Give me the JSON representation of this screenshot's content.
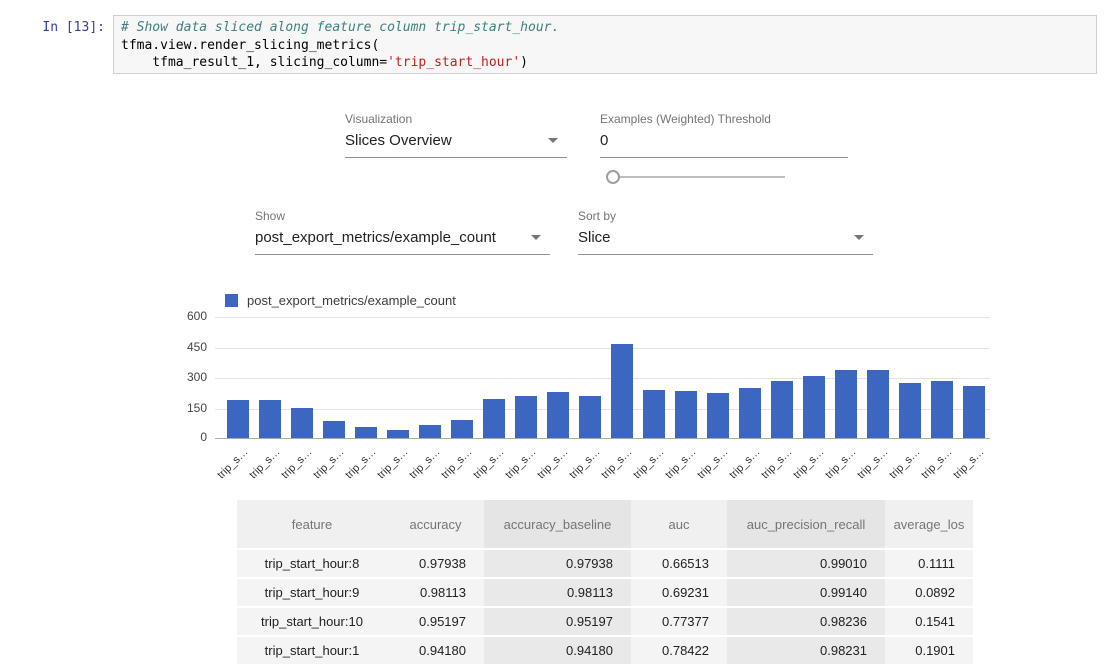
{
  "code": {
    "prompt": "In [13]:",
    "lines": [
      {
        "segments": [
          {
            "t": "# Show data sliced along feature column trip_start_hour.",
            "c": "comment"
          }
        ]
      },
      {
        "segments": [
          {
            "t": "tfma.view.render_slicing_metrics(",
            "c": "plain"
          }
        ]
      },
      {
        "segments": [
          {
            "t": "    tfma_result_1, slicing_column=",
            "c": "plain"
          },
          {
            "t": "'trip_start_hour'",
            "c": "string"
          },
          {
            "t": ")",
            "c": "plain"
          }
        ]
      }
    ]
  },
  "widget": {
    "visualization": {
      "label": "Visualization",
      "value": "Slices Overview"
    },
    "threshold": {
      "label": "Examples (Weighted) Threshold",
      "value": "0"
    },
    "show": {
      "label": "Show",
      "value": "post_export_metrics/example_count"
    },
    "sort_by": {
      "label": "Sort by",
      "value": "Slice"
    }
  },
  "chart_data": {
    "type": "bar",
    "legend": "post_export_metrics/example_count",
    "bar_color": "#3b66c2",
    "ylim": [
      0,
      600
    ],
    "yticks": [
      0,
      150,
      300,
      450,
      600
    ],
    "grid": true,
    "legend_position": "top-left",
    "categories": [
      "trip_s…",
      "trip_s…",
      "trip_s…",
      "trip_s…",
      "trip_s…",
      "trip_s…",
      "trip_s…",
      "trip_s…",
      "trip_s…",
      "trip_s…",
      "trip_s…",
      "trip_s…",
      "trip_s…",
      "trip_s…",
      "trip_s…",
      "trip_s…",
      "trip_s…",
      "trip_s…",
      "trip_s…",
      "trip_s…",
      "trip_s…",
      "trip_s…",
      "trip_s…",
      "trip_s…"
    ],
    "values": [
      187,
      187,
      148,
      84,
      54,
      39,
      64,
      89,
      192,
      207,
      226,
      207,
      467,
      236,
      231,
      221,
      246,
      285,
      305,
      339,
      339,
      275,
      285,
      256
    ]
  },
  "table": {
    "columns": [
      "feature",
      "accuracy",
      "accuracy_baseline",
      "auc",
      "auc_precision_recall",
      "average_los"
    ],
    "rows": [
      [
        "trip_start_hour:8",
        "0.97938",
        "0.97938",
        "0.66513",
        "0.99010",
        "0.1111"
      ],
      [
        "trip_start_hour:9",
        "0.98113",
        "0.98113",
        "0.69231",
        "0.99140",
        "0.0892"
      ],
      [
        "trip_start_hour:10",
        "0.95197",
        "0.95197",
        "0.77377",
        "0.98236",
        "0.1541"
      ],
      [
        "trip_start_hour:1",
        "0.94180",
        "0.94180",
        "0.78422",
        "0.98231",
        "0.1901"
      ]
    ]
  }
}
